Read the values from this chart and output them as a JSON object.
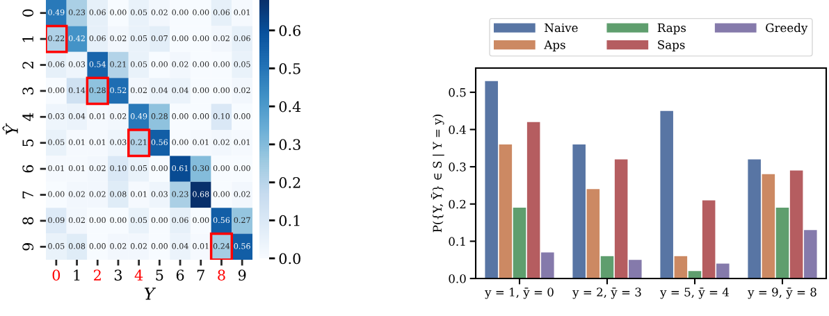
{
  "chart_data": [
    {
      "type": "heatmap",
      "xlabel": "Y",
      "ylabel": "Ŷ",
      "categories": [
        "0",
        "1",
        "2",
        "3",
        "4",
        "5",
        "6",
        "7",
        "8",
        "9"
      ],
      "y_categories": [
        "0",
        "1",
        "2",
        "3",
        "4",
        "5",
        "6",
        "7",
        "8",
        "9"
      ],
      "cells": [
        [
          0.49,
          0.23,
          0.06,
          0.0,
          0.05,
          0.02,
          0.0,
          0.0,
          0.06,
          0.01
        ],
        [
          0.22,
          0.42,
          0.06,
          0.02,
          0.05,
          0.07,
          0.0,
          0.0,
          0.02,
          0.06
        ],
        [
          0.06,
          0.03,
          0.54,
          0.21,
          0.05,
          0.0,
          0.02,
          0.0,
          0.0,
          0.05
        ],
        [
          0.0,
          0.14,
          0.28,
          0.52,
          0.02,
          0.04,
          0.04,
          0.0,
          0.0,
          0.02
        ],
        [
          0.03,
          0.04,
          0.01,
          0.02,
          0.49,
          0.28,
          0.0,
          0.0,
          0.1,
          0.0
        ],
        [
          0.05,
          0.01,
          0.01,
          0.03,
          0.21,
          0.56,
          0.0,
          0.01,
          0.02,
          0.01
        ],
        [
          0.01,
          0.01,
          0.02,
          0.1,
          0.05,
          0.0,
          0.61,
          0.3,
          0.0,
          0.0
        ],
        [
          0.0,
          0.02,
          0.02,
          0.08,
          0.01,
          0.03,
          0.23,
          0.68,
          0.0,
          0.02
        ],
        [
          0.09,
          0.02,
          0.0,
          0.0,
          0.05,
          0.0,
          0.06,
          0.0,
          0.56,
          0.27
        ],
        [
          0.05,
          0.08,
          0.0,
          0.02,
          0.02,
          0.0,
          0.04,
          0.01,
          0.24,
          0.56
        ]
      ],
      "cell_labels": [
        [
          "0.49",
          "0.23",
          "0.06",
          "0.00",
          "0.05",
          "0.02",
          "0.00",
          "0.00",
          "0.06",
          "0.01"
        ],
        [
          "0.22",
          "0.42",
          "0.06",
          "0.02",
          "0.05",
          "0.07",
          "0.00",
          "0.00",
          "0.02",
          "0.06"
        ],
        [
          "0.06",
          "0.03",
          "0.54",
          "0.21",
          "0.05",
          "0.00",
          "0.02",
          "0.00",
          "0.00",
          "0.05"
        ],
        [
          "0.00",
          "0.14",
          "0.28",
          "0.52",
          "0.02",
          "0.04",
          "0.04",
          "0.00",
          "0.00",
          "0.02"
        ],
        [
          "0.03",
          "0.04",
          "0.01",
          "0.02",
          "0.49",
          "0.28",
          "0.00",
          "0.00",
          "0.10",
          "0.00"
        ],
        [
          "0.05",
          "0.01",
          "0.01",
          "0.03",
          "0.21",
          "0.56",
          "0.00",
          "0.01",
          "0.02",
          "0.01"
        ],
        [
          "0.01",
          "0.01",
          "0.02",
          "0.10",
          "0.05",
          "0.00",
          "0.61",
          "0.30",
          "0.00",
          "0.00"
        ],
        [
          "0.00",
          "0.02",
          "0.02",
          "0.08",
          "0.01",
          "0.03",
          "0.23",
          "0.68",
          "0.00",
          "0.02"
        ],
        [
          "0.09",
          "0.02",
          "0.00",
          "0.00",
          "0.05",
          "0.00",
          "0.06",
          "0.00",
          "0.56",
          "0.27"
        ],
        [
          "0.05",
          "0.08",
          "0.00",
          "0.02",
          "0.02",
          "0.00",
          "0.04",
          "0.01",
          "0.24",
          "0.56"
        ]
      ],
      "clim": [
        0,
        0.68
      ],
      "cticks": [
        {
          "value": 0,
          "label": "0.0"
        },
        0.1,
        0.2,
        0.3,
        0.4,
        0.5,
        0.6
      ]
    },
    {
      "type": "bar",
      "ylabel": "P({Y, Ȳ} ∈ S | Y = y)",
      "categories": [
        "y = 1, ȳ = 0",
        "y = 2, ȳ = 3",
        "y = 5, ȳ = 4",
        "y = 9, ȳ = 8"
      ],
      "series": [
        {
          "name": "Naive",
          "color": "#5875a4",
          "values": [
            0.53,
            0.36,
            0.45,
            0.32
          ]
        },
        {
          "name": "Aps",
          "color": "#cc8963",
          "values": [
            0.36,
            0.24,
            0.06,
            0.28
          ]
        },
        {
          "name": "Raps",
          "color": "#5f9e6e",
          "values": [
            0.19,
            0.06,
            0.02,
            0.19
          ]
        },
        {
          "name": "Saps",
          "color": "#b55d60",
          "values": [
            0.42,
            0.32,
            0.21,
            0.29
          ]
        },
        {
          "name": "Greedy",
          "color": "#857aab",
          "values": [
            0.07,
            0.05,
            0.04,
            0.13
          ]
        }
      ],
      "ylim": [
        0,
        0.565
      ],
      "yticks": [
        {
          "value": 0,
          "label": "0.0"
        },
        0.1,
        0.2,
        0.3,
        0.4,
        0.5
      ],
      "legend": "top"
    }
  ]
}
